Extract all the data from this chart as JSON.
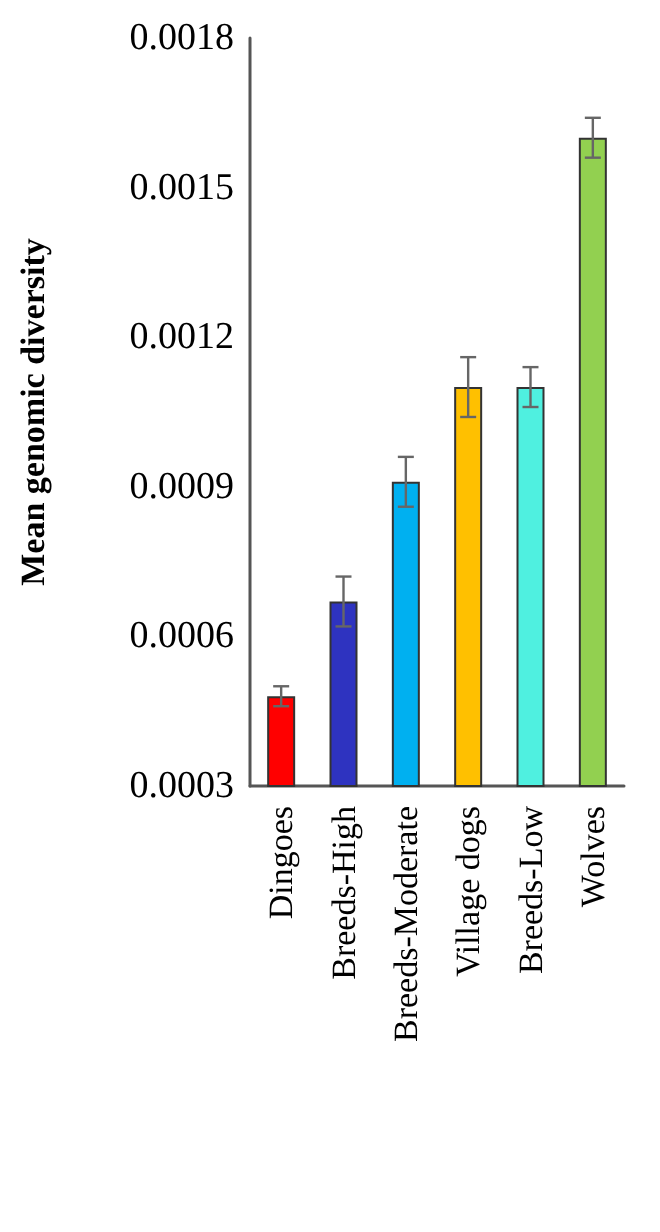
{
  "chart_data": {
    "type": "bar",
    "ylabel": "Mean genomic diversity",
    "categories": [
      "Dingoes",
      "Breeds-High",
      "Breeds-Moderate",
      "Village dogs",
      "Breeds-Low",
      "Wolves"
    ],
    "values": [
      0.00048,
      0.00067,
      0.00091,
      0.0011,
      0.0011,
      0.0016
    ],
    "colors": [
      "#ff0000",
      "#2e33c0",
      "#00b0f0",
      "#ffc000",
      "#4ff0e0",
      "#92d050"
    ],
    "errors": [
      2e-05,
      5e-05,
      5e-05,
      6e-05,
      4e-05,
      4e-05
    ],
    "ylim": [
      0.0003,
      0.0018
    ],
    "yticks": [
      0.0003,
      0.0006,
      0.0009,
      0.0012,
      0.0015,
      0.0018
    ],
    "grid": false
  }
}
